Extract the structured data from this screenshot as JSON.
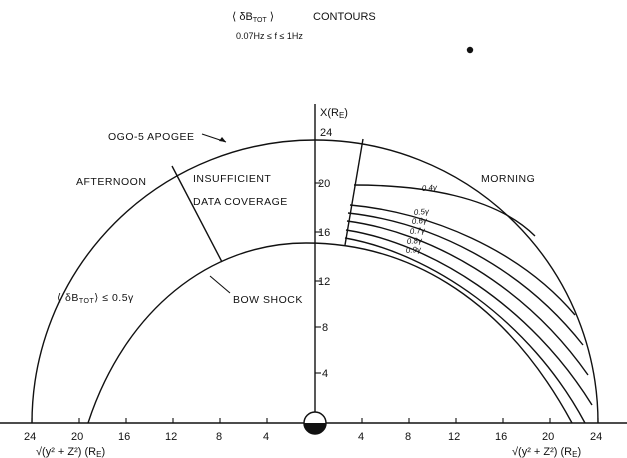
{
  "header": {
    "line1_left": "⟨ δB",
    "line1_sub": "TOT",
    "line1_right": " ⟩",
    "line1_title": "CONTOURS",
    "line2": "0.07Hz ≤  f ≤ 1Hz"
  },
  "axes": {
    "y_axis_label": "X(R",
    "y_axis_label_sub": "E",
    "y_axis_label_close": ")",
    "y_ticks": [
      "4",
      "8",
      "12",
      "16",
      "20",
      "24"
    ],
    "x_ticks_left": [
      "24",
      "20",
      "16",
      "12",
      "8",
      "4"
    ],
    "x_ticks_right": [
      "4",
      "8",
      "12",
      "16",
      "20",
      "24"
    ],
    "x_axis_label": "√(y² + Z²) (R",
    "x_axis_label_sub": "E",
    "x_axis_label_close": ")"
  },
  "labels": {
    "apogee": "OGO-5  APOGEE",
    "afternoon": "AFTERNOON",
    "morning": "MORNING",
    "insufficient_1": "INSUFFICIENT",
    "insufficient_2": "DATA  COVERAGE",
    "bow_shock": "BOW  SHOCK",
    "low_level_left": "⟨ δB",
    "low_level_sub": "TOT",
    "low_level_right": "⟩ ≤ 0.5γ"
  },
  "contours": [
    {
      "label": "0.4γ"
    },
    {
      "label": "0.5γ"
    },
    {
      "label": "0.6γ"
    },
    {
      "label": "0.7γ"
    },
    {
      "label": "0.8γ"
    },
    {
      "label": "0.9γ"
    }
  ]
}
